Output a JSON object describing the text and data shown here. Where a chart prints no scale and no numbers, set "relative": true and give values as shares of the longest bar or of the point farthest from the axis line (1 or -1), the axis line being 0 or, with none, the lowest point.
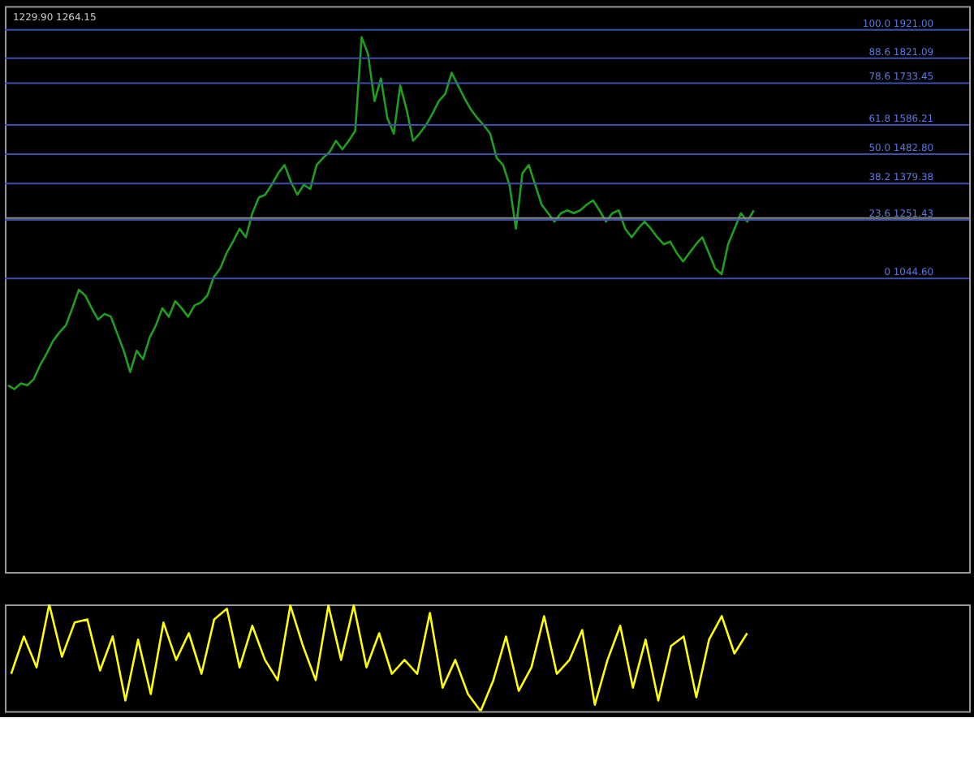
{
  "chart_data": [
    {
      "type": "line",
      "annotations": [
        "1229.90 1264.15"
      ],
      "categories": [
        null,
        null,
        null,
        null,
        null,
        null,
        null,
        null,
        null,
        null,
        null,
        null,
        null,
        null,
        null,
        null,
        null,
        null,
        null,
        null,
        null,
        null,
        null,
        null,
        null,
        null,
        null,
        null,
        null,
        null,
        null,
        null,
        null,
        null,
        null,
        null,
        null,
        null,
        null,
        null,
        null,
        null,
        null,
        null,
        null,
        null,
        null,
        null,
        null,
        null,
        null,
        null,
        null,
        null,
        null,
        null,
        null,
        null,
        null,
        null,
        null,
        null,
        null,
        null,
        null,
        null,
        null,
        null,
        null,
        null,
        null,
        null,
        null,
        null,
        null,
        null,
        null,
        null,
        null,
        null,
        null,
        null,
        null,
        null,
        null,
        null,
        null,
        null,
        null,
        null,
        null,
        null,
        null,
        null,
        null,
        null,
        null,
        null,
        null,
        null,
        null,
        null,
        null,
        null,
        null,
        null,
        null,
        null,
        null,
        null,
        null,
        null,
        null,
        null,
        null,
        null,
        null,
        null,
        null,
        null,
        null,
        null,
        null,
        null,
        null,
        null,
        null,
        null,
        null,
        null,
        null,
        null,
        null,
        null,
        null,
        null,
        null,
        null,
        null,
        null,
        null,
        null,
        null,
        null,
        null,
        null,
        null,
        null,
        null,
        null
      ],
      "series": [
        {
          "color": "#1f9e1f",
          "values": [
            668,
            655,
            675,
            668,
            690,
            740,
            780,
            825,
            855,
            880,
            940,
            1005,
            985,
            940,
            900,
            920,
            910,
            850,
            790,
            715,
            790,
            760,
            835,
            880,
            940,
            910,
            965,
            940,
            910,
            950,
            960,
            985,
            1050,
            1080,
            1135,
            1175,
            1220,
            1190,
            1275,
            1330,
            1340,
            1375,
            1415,
            1445,
            1385,
            1340,
            1375,
            1360,
            1445,
            1470,
            1490,
            1530,
            1500,
            1530,
            1565,
            1895,
            1835,
            1670,
            1750,
            1610,
            1555,
            1725,
            1640,
            1530,
            1555,
            1585,
            1625,
            1670,
            1695,
            1770,
            1725,
            1680,
            1640,
            1610,
            1585,
            1555,
            1470,
            1445,
            1375,
            1220,
            1415,
            1445,
            1375,
            1305,
            1275,
            1245,
            1275,
            1285,
            1275,
            1285,
            1305,
            1320,
            1285,
            1245,
            1275,
            1285,
            1220,
            1190,
            1220,
            1245,
            1220,
            1190,
            1165,
            1175,
            1135,
            1105,
            1135,
            1165,
            1190,
            1135,
            1080,
            1060,
            1165,
            1220,
            1275,
            1245,
            1285,
            null,
            null,
            null,
            null,
            null,
            null,
            null,
            null,
            null,
            null,
            null,
            null,
            null,
            null,
            null,
            null,
            null,
            null,
            null,
            null,
            null,
            null,
            null,
            null,
            null,
            null,
            null,
            null,
            null,
            null,
            null,
            null,
            null
          ]
        }
      ],
      "ylim": [
        10,
        2005
      ],
      "tick_labels": false,
      "grid": false,
      "ref_lines": [
        {
          "axis": "y",
          "value": 1921.0,
          "label": "100.0 1921.00",
          "color": "#3a4fa8"
        },
        {
          "axis": "y",
          "value": 1821.09,
          "label": "88.6 1821.09",
          "color": "#3a4fa8"
        },
        {
          "axis": "y",
          "value": 1733.45,
          "label": "78.6 1733.45",
          "color": "#3a4fa8"
        },
        {
          "axis": "y",
          "value": 1586.21,
          "label": "61.8 1586.21",
          "color": "#3a4fa8"
        },
        {
          "axis": "y",
          "value": 1482.8,
          "label": "50.0 1482.80",
          "color": "#3a4fa8"
        },
        {
          "axis": "y",
          "value": 1379.38,
          "label": "38.2 1379.38",
          "color": "#3a4fa8"
        },
        {
          "axis": "y",
          "value": 1251.43,
          "label": "23.6 1251.43",
          "color": "#3a4fa8"
        },
        {
          "axis": "y",
          "value": 1044.6,
          "label": "0 1044.60",
          "color": "#3a4fa8"
        },
        {
          "axis": "y",
          "value": 1258,
          "label": null,
          "color": "#8a8a8a"
        }
      ]
    },
    {
      "type": "line",
      "relative": true,
      "categories": [
        null,
        null,
        null,
        null,
        null,
        null,
        null,
        null,
        null,
        null,
        null,
        null,
        null,
        null,
        null,
        null,
        null,
        null,
        null,
        null,
        null,
        null,
        null,
        null,
        null,
        null,
        null,
        null,
        null,
        null,
        null,
        null,
        null,
        null,
        null,
        null,
        null,
        null,
        null,
        null,
        null,
        null,
        null,
        null,
        null,
        null,
        null,
        null,
        null,
        null,
        null,
        null,
        null,
        null,
        null,
        null,
        null,
        null,
        null,
        null,
        null,
        null,
        null,
        null,
        null,
        null,
        null,
        null,
        null,
        null,
        null,
        null,
        null,
        null,
        null,
        null
      ],
      "series": [
        {
          "color": "#ffff00",
          "values": [
            0.35,
            0.7,
            0.41,
            1,
            0.51,
            0.83,
            0.86,
            0.38,
            0.7,
            0.1,
            0.67,
            0.16,
            0.83,
            0.48,
            0.73,
            0.35,
            0.86,
            0.96,
            0.41,
            0.8,
            0.48,
            0.29,
            0.99,
            0.61,
            0.29,
            0.99,
            0.48,
            0.99,
            0.41,
            0.73,
            0.35,
            0.48,
            0.35,
            0.92,
            0.22,
            0.48,
            0.16,
            0,
            0.29,
            0.7,
            0.19,
            0.41,
            0.89,
            0.35,
            0.48,
            0.76,
            0.06,
            0.48,
            0.8,
            0.22,
            0.67,
            0.1,
            0.61,
            0.7,
            0.13,
            0.67,
            0.89,
            0.54,
            0.73,
            null,
            null,
            null,
            null,
            null,
            null,
            null,
            null,
            null,
            null,
            null,
            null,
            null,
            null,
            null,
            null,
            null
          ]
        }
      ],
      "tick_labels": false,
      "grid": false
    }
  ]
}
